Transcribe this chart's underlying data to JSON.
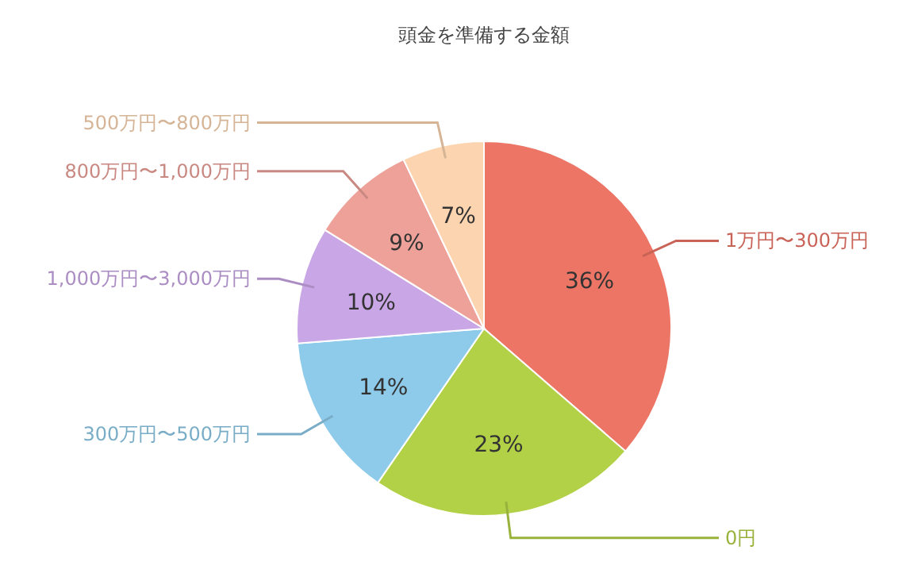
{
  "chart_data": {
    "type": "pie",
    "title": "頭金を準備する金額",
    "categories": [
      "1万円〜300万円",
      "0円",
      "300万円〜500万円",
      "1,000万円〜3,000万円",
      "800万円〜1,000万円",
      "500万円〜800万円"
    ],
    "values": [
      36,
      23,
      14,
      10,
      9,
      7
    ],
    "colors": [
      "#ec7566",
      "#b3d147",
      "#8ecbea",
      "#c9a6e6",
      "#eda199",
      "#fcd4b0"
    ],
    "value_labels": [
      "36%",
      "23%",
      "14%",
      "10%",
      "9%",
      "7%"
    ]
  }
}
